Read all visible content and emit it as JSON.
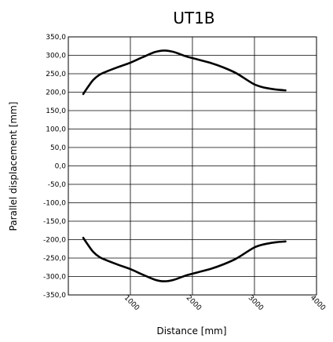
{
  "chart_data": {
    "type": "line",
    "title": "UT1B",
    "xlabel": "Distance  [mm]",
    "ylabel": "Parallel displacement [mm]",
    "xlim": [
      0,
      4000
    ],
    "ylim": [
      -350,
      350
    ],
    "x_ticks": [
      1000,
      2000,
      3000,
      4000
    ],
    "x_tick_labels": [
      "1000",
      "2000",
      "3000",
      "4000"
    ],
    "y_ticks": [
      350,
      300,
      250,
      200,
      150,
      100,
      50,
      0,
      -50,
      -100,
      -150,
      -200,
      -250,
      -300,
      -350
    ],
    "y_tick_labels": [
      "350,0",
      "300,0",
      "250,0",
      "200,0",
      "150,0",
      "100,0",
      "50,0",
      "0,0",
      "-50,0",
      "-100,0",
      "-150,0",
      "-200,0",
      "-250,0",
      "-300,0",
      "-350,0"
    ],
    "grid": {
      "x": true,
      "y": true
    },
    "legend": "none",
    "series": [
      {
        "color": "#000000",
        "x": [
          240,
          300,
          400,
          500,
          600,
          800,
          1000,
          1200,
          1400,
          1550,
          1700,
          1900,
          2100,
          2300,
          2500,
          2700,
          2900,
          3000,
          3100,
          3200,
          3350,
          3500
        ],
        "y": [
          195,
          210,
          233,
          247,
          255,
          268,
          280,
          295,
          309,
          313,
          309,
          297,
          288,
          279,
          267,
          252,
          231,
          221,
          215,
          211,
          207,
          205
        ]
      },
      {
        "color": "#000000",
        "x": [
          240,
          300,
          400,
          500,
          600,
          800,
          1000,
          1200,
          1400,
          1550,
          1700,
          1900,
          2100,
          2300,
          2500,
          2700,
          2900,
          3000,
          3100,
          3200,
          3350,
          3500
        ],
        "y": [
          -195,
          -210,
          -233,
          -247,
          -255,
          -268,
          -280,
          -295,
          -309,
          -313,
          -309,
          -297,
          -288,
          -279,
          -267,
          -252,
          -231,
          -221,
          -215,
          -211,
          -207,
          -205
        ]
      }
    ]
  }
}
